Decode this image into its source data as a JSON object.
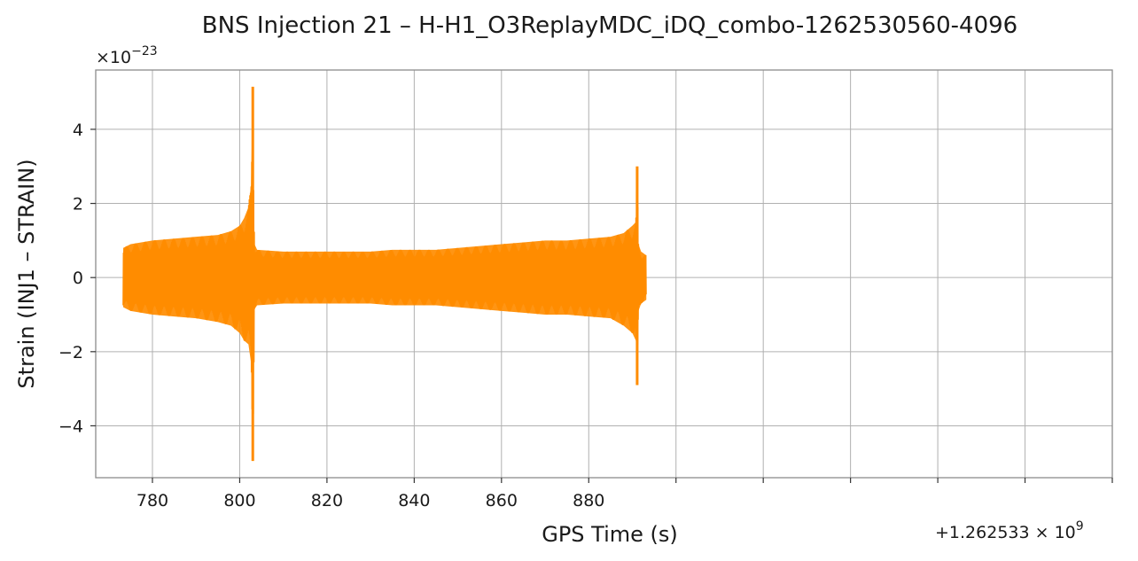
{
  "chart_data": {
    "type": "line",
    "title": "BNS Injection 21 – H-H1_O3ReplayMDC_iDQ_combo-1262530560-4096",
    "xlabel": "GPS Time (s)",
    "ylabel": "Strain (INJ1 – STRAIN)",
    "x_offset_label": "+1.262533 × 10",
    "x_offset_exponent": "9",
    "y_scale_label": "×10",
    "y_scale_exponent": "−23",
    "xlim": [
      767,
      1000
    ],
    "ylim": [
      -5.4,
      5.6
    ],
    "x_ticks": [
      780,
      800,
      820,
      840,
      860,
      880,
      900,
      920,
      940,
      960,
      980,
      1000
    ],
    "x_tick_labels": [
      "780",
      "800",
      "820",
      "840",
      "860",
      "880",
      "",
      "",
      "",
      "",
      "",
      ""
    ],
    "y_ticks": [
      -4,
      -2,
      0,
      2,
      4
    ],
    "y_tick_labels": [
      "−4",
      "−2",
      "0",
      "2",
      "4"
    ],
    "grid": true,
    "series": [
      {
        "color": "#ff8c00",
        "envelope": {
          "x": [
            773.3,
            775,
            780,
            785,
            790,
            795,
            798,
            800,
            801,
            802,
            802.6,
            803.0,
            803.4,
            804,
            810,
            815,
            820,
            825,
            830,
            835,
            840,
            845,
            850,
            855,
            860,
            865,
            870,
            875,
            880,
            885,
            888,
            890,
            890.8,
            891.1,
            891.4,
            892,
            893.2
          ],
          "upper": [
            0.8,
            0.9,
            1.0,
            1.05,
            1.1,
            1.15,
            1.25,
            1.4,
            1.6,
            1.9,
            2.5,
            5.15,
            0.9,
            0.75,
            0.7,
            0.7,
            0.7,
            0.7,
            0.7,
            0.75,
            0.75,
            0.75,
            0.8,
            0.85,
            0.9,
            0.95,
            1.0,
            1.0,
            1.05,
            1.1,
            1.2,
            1.4,
            1.5,
            3.0,
            0.9,
            0.7,
            0.6
          ],
          "lower": [
            -0.8,
            -0.9,
            -1.0,
            -1.05,
            -1.1,
            -1.2,
            -1.3,
            -1.5,
            -1.7,
            -1.8,
            -2.3,
            -4.95,
            -0.85,
            -0.75,
            -0.7,
            -0.7,
            -0.7,
            -0.7,
            -0.7,
            -0.75,
            -0.75,
            -0.75,
            -0.8,
            -0.85,
            -0.9,
            -0.95,
            -1.0,
            -1.0,
            -1.05,
            -1.1,
            -1.3,
            -1.5,
            -1.7,
            -2.9,
            -0.9,
            -0.7,
            -0.6
          ]
        }
      }
    ]
  }
}
